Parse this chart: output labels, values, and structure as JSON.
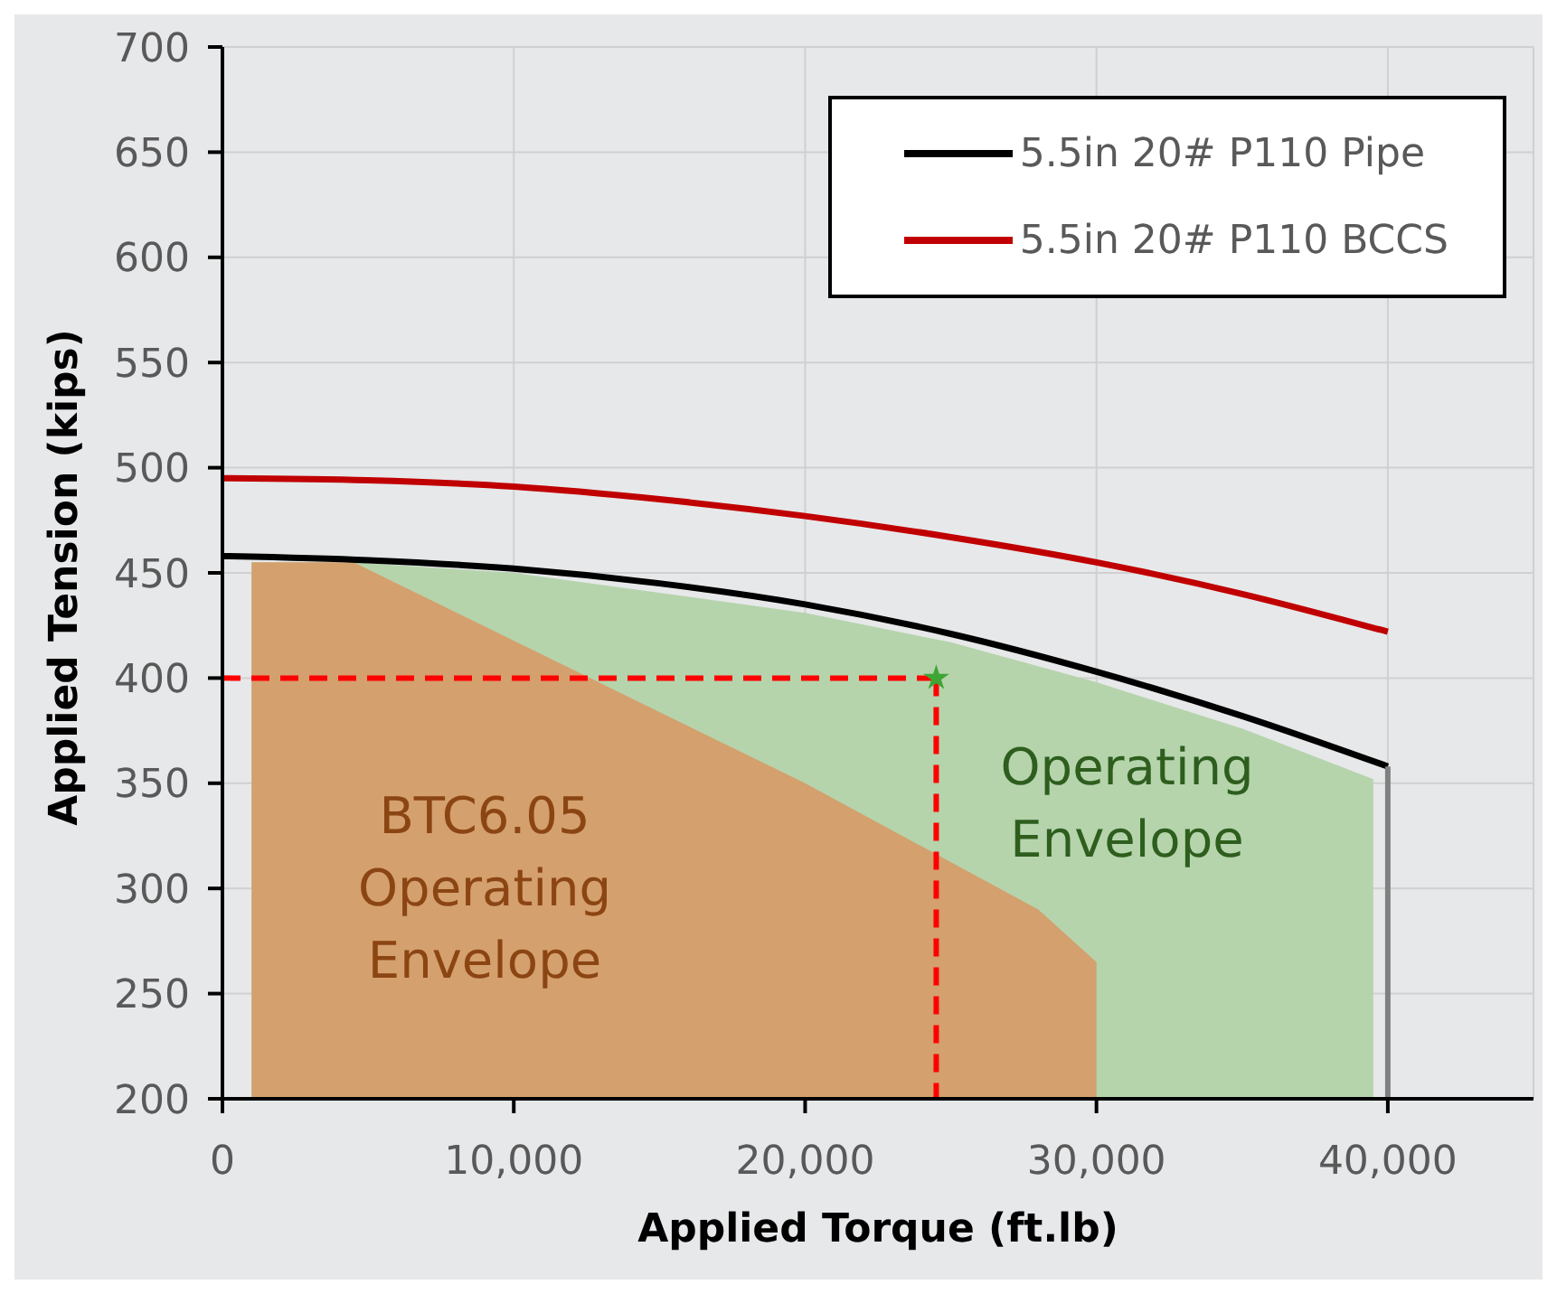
{
  "chart_data": {
    "type": "line",
    "xlabel": "Applied Torque (ft.lb)",
    "ylabel": "Applied Tension (kips)",
    "xlim": [
      0,
      45000
    ],
    "xticks": [
      {
        "value": 0,
        "label": "0"
      },
      {
        "value": 10000,
        "label": "10,000"
      },
      {
        "value": 20000,
        "label": "20,000"
      },
      {
        "value": 30000,
        "label": "30,000"
      },
      {
        "value": 40000,
        "label": "40,000"
      }
    ],
    "ylim": [
      200,
      700
    ],
    "yticks": [
      200,
      250,
      300,
      350,
      400,
      450,
      500,
      550,
      600,
      650,
      700
    ],
    "grid": true,
    "legend": "top right",
    "marker": "none",
    "series": [
      {
        "type": "area",
        "color": "#b5d4ac",
        "x": [
          1000,
          4500,
          10000,
          20000,
          25000,
          30000,
          35000,
          39500
        ],
        "values": [
          455,
          455,
          450,
          431,
          417,
          398,
          376,
          352
        ]
      },
      {
        "type": "area",
        "color": "#d4a06e",
        "x": [
          1000,
          4500,
          20000,
          28000,
          30000
        ],
        "values": [
          455,
          455,
          350,
          290,
          265
        ]
      },
      {
        "name": "5.5in 20# P110 Pipe",
        "color": "#000000",
        "x": [
          0,
          5000,
          10000,
          15000,
          20000,
          25000,
          30000,
          35000,
          40000
        ],
        "values": [
          458,
          456,
          452,
          445,
          435,
          421,
          403,
          382,
          358
        ]
      },
      {
        "name": "5.5in 20# P110 BCCS",
        "color": "#c00000",
        "x": [
          0,
          5000,
          10000,
          15000,
          20000,
          25000,
          30000,
          35000,
          40000
        ],
        "values": [
          495,
          494,
          491,
          485,
          477,
          467,
          455,
          440,
          422
        ]
      },
      {
        "color": "#808080",
        "x": [
          40000,
          40000
        ],
        "values": [
          358,
          200
        ]
      },
      {
        "type": "line",
        "color": "#ff0000",
        "line_style": "dashed",
        "x": [
          0,
          24500
        ],
        "values": [
          400,
          400
        ]
      },
      {
        "type": "line",
        "color": "#ff0000",
        "line_style": "dashed",
        "x": [
          24500,
          24500
        ],
        "values": [
          400,
          200
        ]
      },
      {
        "type": "scatter",
        "color": "#3fa535",
        "marker": "star",
        "x": [
          24500
        ],
        "values": [
          400
        ]
      }
    ],
    "annotations": [
      "BTC6.05\nOperating\nEnvelope",
      "Operating\nEnvelope"
    ]
  }
}
